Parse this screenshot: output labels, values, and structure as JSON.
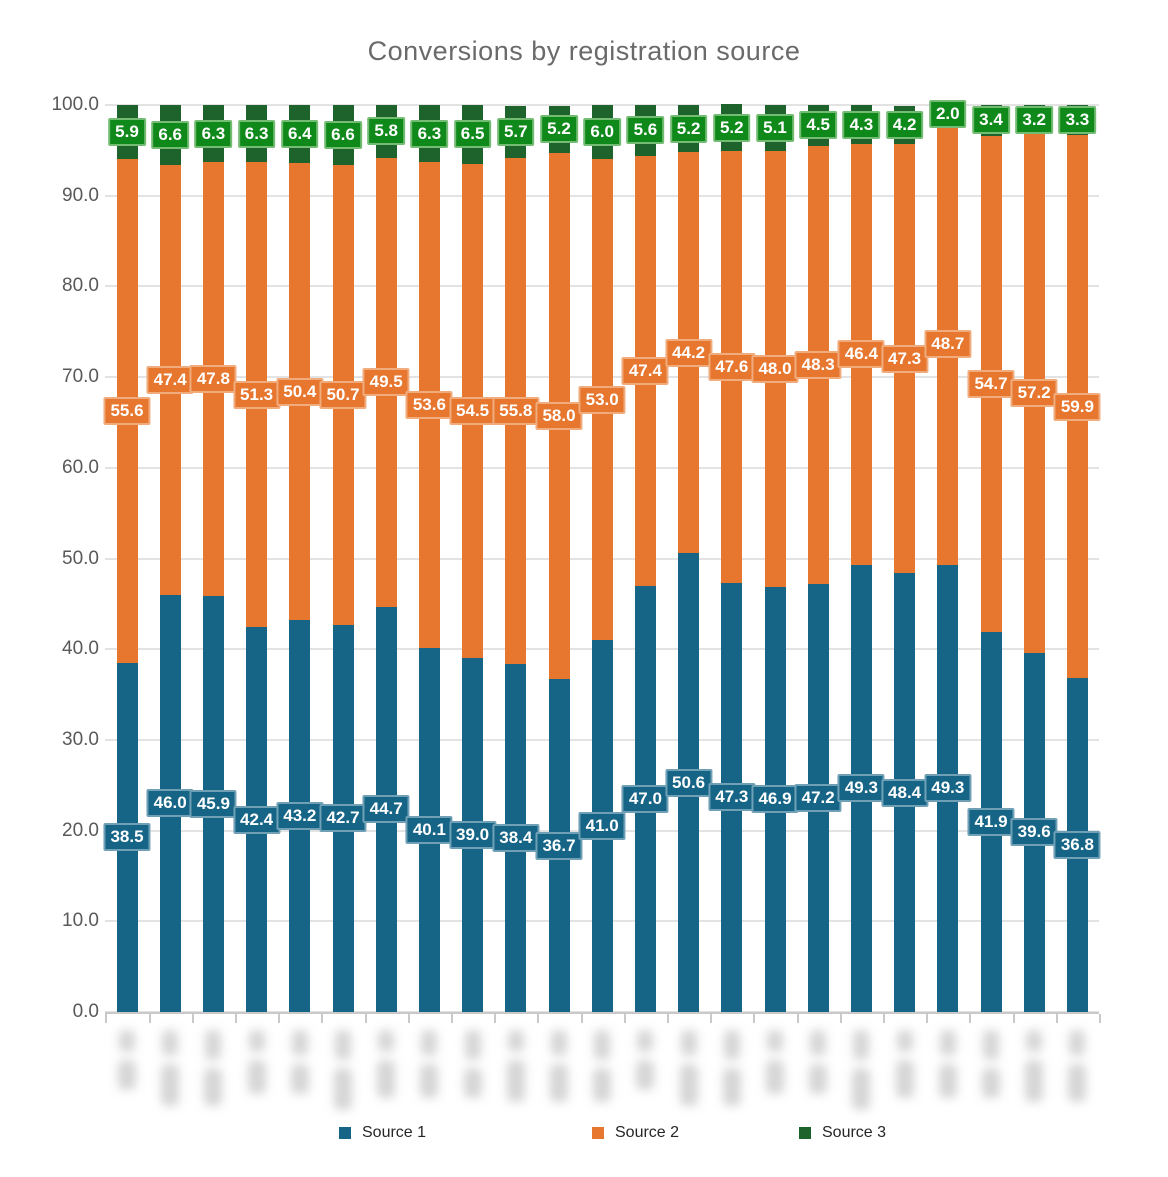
{
  "title": "Conversions by registration source",
  "legend": {
    "items": [
      {
        "label": "Source 1",
        "color": "#176586"
      },
      {
        "label": "Source 2",
        "color": "#e7762e"
      },
      {
        "label": "Source 3",
        "color": "#1e632c"
      }
    ],
    "position": "bottom"
  },
  "x_axis": {
    "labels_blurred": true,
    "category_count": 23
  },
  "chart_data": {
    "type": "bar",
    "stacked": true,
    "percent_stacked": true,
    "title": "Conversions by registration source",
    "categories": [
      "1",
      "2",
      "3",
      "4",
      "5",
      "6",
      "7",
      "8",
      "9",
      "10",
      "11",
      "12",
      "13",
      "14",
      "15",
      "16",
      "17",
      "18",
      "19",
      "20",
      "21",
      "22",
      "23"
    ],
    "categories_redacted": true,
    "series": [
      {
        "name": "Source 1",
        "color": "#176586",
        "label_fill": "#176586",
        "label_border": "#6fa0b6",
        "values": [
          38.5,
          46.0,
          45.9,
          42.4,
          43.2,
          42.7,
          44.7,
          40.1,
          39.0,
          38.4,
          36.7,
          41.0,
          47.0,
          50.6,
          47.3,
          46.9,
          47.2,
          49.3,
          48.4,
          49.3,
          41.9,
          39.6,
          36.8
        ]
      },
      {
        "name": "Source 2",
        "color": "#e7762e",
        "label_fill": "#e7762e",
        "label_border": "#f0ac7d",
        "values": [
          55.6,
          47.4,
          47.8,
          51.3,
          50.4,
          50.7,
          49.5,
          53.6,
          54.5,
          55.8,
          58.0,
          53.0,
          47.4,
          44.2,
          47.6,
          48.0,
          48.3,
          46.4,
          47.3,
          48.7,
          54.7,
          57.2,
          59.9
        ]
      },
      {
        "name": "Source 3",
        "color": "#1e632c",
        "label_fill": "#10891b",
        "label_border": "#74bc74",
        "values": [
          5.9,
          6.6,
          6.3,
          6.3,
          6.4,
          6.6,
          5.8,
          6.3,
          6.5,
          5.7,
          5.2,
          6.0,
          5.6,
          5.2,
          5.2,
          5.1,
          4.5,
          4.3,
          4.2,
          2.0,
          3.4,
          3.2,
          3.3
        ]
      }
    ],
    "ylim": [
      0,
      100
    ],
    "y_ticks": [
      0,
      10,
      20,
      30,
      40,
      50,
      60,
      70,
      80,
      90,
      100
    ],
    "y_tick_labels": [
      "0.0",
      "10.0",
      "20.0",
      "30.0",
      "40.0",
      "50.0",
      "60.0",
      "70.0",
      "80.0",
      "90.0",
      "100.0"
    ],
    "data_label_decimals": 1,
    "grid": true,
    "legend_position": "bottom"
  }
}
